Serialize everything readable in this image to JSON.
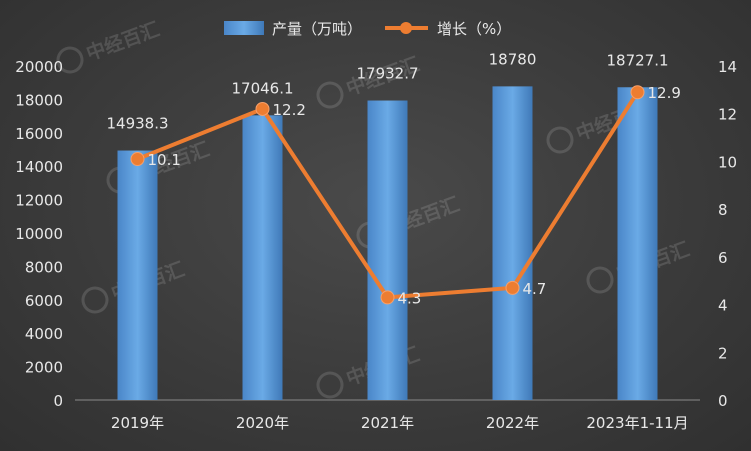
{
  "chart_data": {
    "type": "bar+line",
    "categories": [
      "2019年",
      "2020年",
      "2021年",
      "2022年",
      "2023年1-11月"
    ],
    "series": [
      {
        "name": "产量（万吨）",
        "type": "bar",
        "axis": "left",
        "values": [
          14938.3,
          17046.1,
          17932.7,
          18780,
          18727.1
        ],
        "labels": [
          "14938.3",
          "17046.1",
          "17932.7",
          "18780",
          "18727.1"
        ],
        "color": "#5b9bd5"
      },
      {
        "name": "增长（%）",
        "type": "line",
        "axis": "right",
        "values": [
          10.1,
          12.2,
          4.3,
          4.7,
          12.9
        ],
        "labels": [
          "10.1",
          "12.2",
          "4.3",
          "4.7",
          "12.9"
        ],
        "color": "#ed7d31"
      }
    ],
    "y_left": {
      "min": 0,
      "max": 20000,
      "ticks": [
        0,
        2000,
        4000,
        6000,
        8000,
        10000,
        12000,
        14000,
        16000,
        18000,
        20000
      ]
    },
    "y_right": {
      "min": 0,
      "max": 14,
      "ticks": [
        0,
        2,
        4,
        6,
        8,
        10,
        12,
        14
      ]
    },
    "legend_position": "top-center",
    "grid": false,
    "watermark": "中经百汇"
  }
}
